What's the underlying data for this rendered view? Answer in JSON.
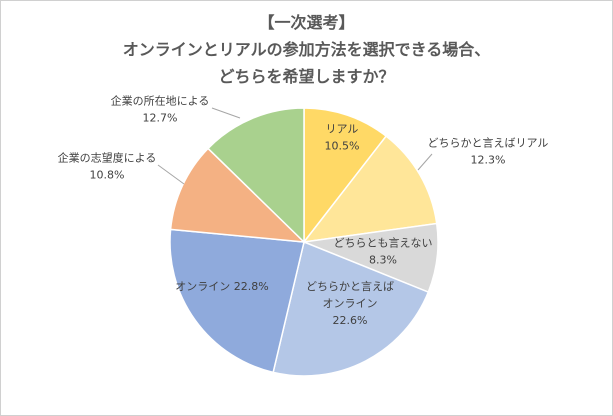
{
  "chart_data": {
    "type": "pie",
    "title": [
      "【一次選考】",
      "オンラインとリアルの参加方法を選択できる場合、",
      "どちらを希望しますか？"
    ],
    "unit": "%",
    "start_angle_deg": 0,
    "direction": "clockwise",
    "slices": [
      {
        "label": "リアル",
        "value": 10.5,
        "color": "#ffd966"
      },
      {
        "label": "どちらかと言えばリアル",
        "value": 12.3,
        "color": "#ffe699"
      },
      {
        "label": "どちらとも言えない",
        "value": 8.3,
        "color": "#d9d9d9"
      },
      {
        "label": "どちらかと言えば\nオンライン",
        "value": 22.6,
        "color": "#b4c7e7"
      },
      {
        "label": "オンライン",
        "value": 22.8,
        "color": "#8faadc"
      },
      {
        "label": "企業の志望度による",
        "value": 10.8,
        "color": "#f4b183"
      },
      {
        "label": "企業の所在地による",
        "value": 12.7,
        "color": "#a9d18e"
      }
    ]
  }
}
